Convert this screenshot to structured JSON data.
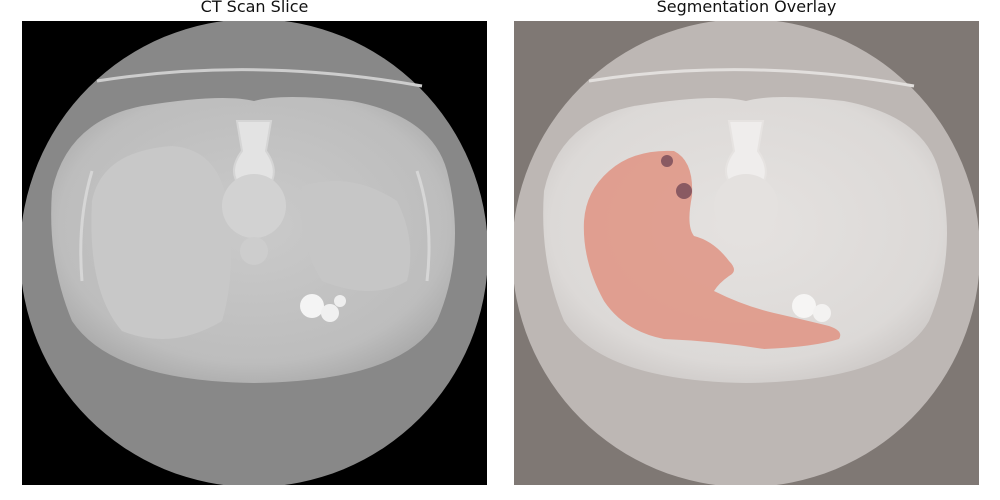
{
  "left_panel": {
    "title": "CT Scan Slice"
  },
  "right_panel": {
    "title": "Segmentation Overlay",
    "overlay_color": "#e0998a",
    "lesion_color": "#8a5a62"
  },
  "colors": {
    "background_outside_fov_left": "#000000",
    "background_outside_fov_right": "#7f7874",
    "fov_disc": "#858585",
    "body_tissue": "#b8b8b8",
    "organ_tissue": "#c4c4c4",
    "bone": "#e2e2e2",
    "table_line": "#cfcfcf"
  }
}
